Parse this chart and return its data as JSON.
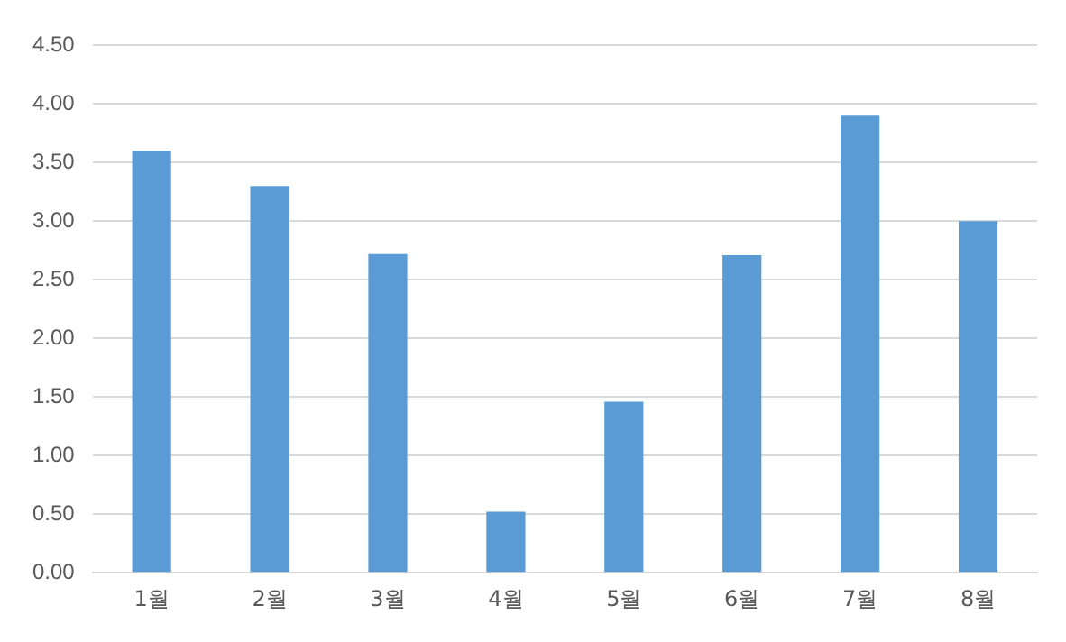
{
  "chart_data": {
    "type": "bar",
    "categories": [
      "1월",
      "2월",
      "3월",
      "4월",
      "5월",
      "6월",
      "7월",
      "8월"
    ],
    "series": [
      {
        "color": "#5b9bd5",
        "values": [
          3.6,
          3.3,
          2.72,
          0.52,
          1.46,
          2.71,
          3.9,
          3.0
        ]
      }
    ],
    "ylim": [
      0,
      4.5
    ],
    "yticks": [
      {
        "value": 0,
        "label": "0.00"
      },
      {
        "value": 0.5,
        "label": "0.50"
      },
      {
        "value": 1,
        "label": "1.00"
      },
      {
        "value": 1.5,
        "label": "1.50"
      },
      {
        "value": 2,
        "label": "2.00"
      },
      {
        "value": 2.5,
        "label": "2.50"
      },
      {
        "value": 3,
        "label": "3.00"
      },
      {
        "value": 3.5,
        "label": "3.50"
      },
      {
        "value": 4,
        "label": "4.00"
      },
      {
        "value": 4.5,
        "label": "4.50"
      }
    ],
    "grid": "y",
    "legend": false
  }
}
